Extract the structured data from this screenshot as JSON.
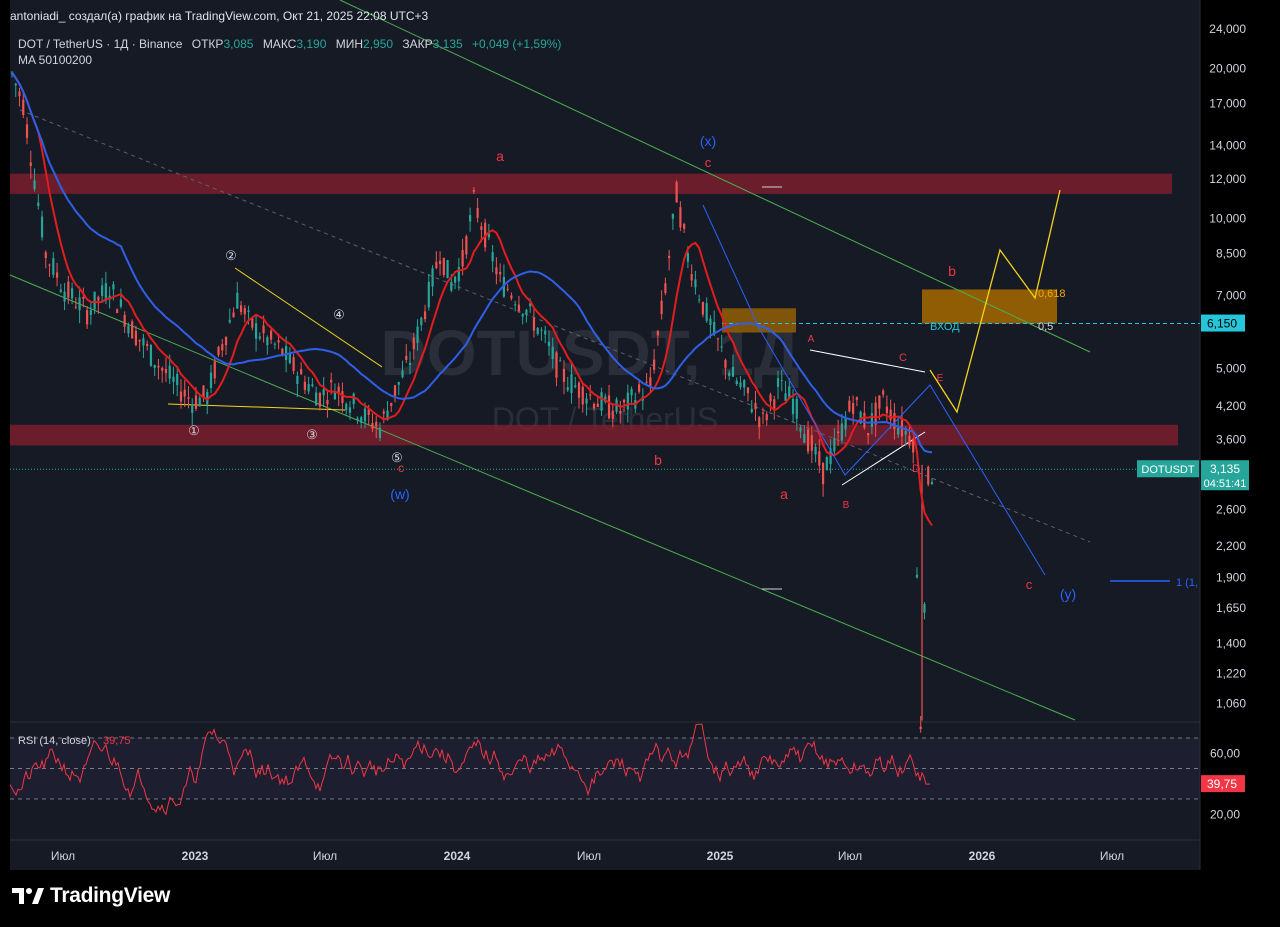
{
  "header": {
    "author_line": "antoniadi_ создал(а) график на TradingView.com, Окт 21, 2025 22:08 UTC+3",
    "symbol_line": "DOT / TetherUS · 1Д · Binance",
    "open_label": "ОТКР",
    "open": "3,085",
    "high_label": "МАКС",
    "high": "3,190",
    "low_label": "МИН",
    "low": "2,950",
    "close_label": "ЗАКР",
    "close": "3,135",
    "change": "+0,049 (+1,59%)",
    "ma_line": "MA 50100200"
  },
  "watermark": {
    "symbol": "DOTUSDT, 1Д",
    "name": "DOT / TetherUS"
  },
  "brand": {
    "name": "TradingView"
  },
  "colors": {
    "background": "#161a25",
    "up": "#26a69a",
    "down": "#ef5350",
    "ma_fast": "#e11d1d",
    "ma_slow": "#2f5fe8",
    "wave_labels": "#f23645",
    "wave_blue": "#2962ff",
    "zone_red": "#7a1e2e",
    "zone_orange": "#a66a00",
    "trend_green": "#4caf50",
    "projection_yellow": "#f5d31b",
    "rsi_line": "#f23645",
    "price_tag": "#26a69a"
  },
  "chart_data": {
    "type": "candlestick",
    "title": "DOT / TetherUS · 1Д · Binance",
    "scale": "log",
    "ylim": [
      0.95,
      25
    ],
    "price_axis_ticks": [
      "24,000",
      "20,000",
      "17,000",
      "14,000",
      "12,000",
      "10,000",
      "8,500",
      "7,000",
      "6,150",
      "5,000",
      "4,200",
      "3,600",
      "3,135",
      "2,600",
      "2,200",
      "1,900",
      "1,650",
      "1,400",
      "1,220",
      "1,060"
    ],
    "time_axis_ticks": [
      "Июл",
      "2023",
      "Июл",
      "2024",
      "Июл",
      "2025",
      "Июл",
      "2026",
      "Июл"
    ],
    "current_price": {
      "label": "DOTUSDT",
      "value": "3,135",
      "countdown": "04:51:41",
      "value_num": 3.135
    },
    "price_levels": [
      {
        "label": "6,150",
        "value": 6.15,
        "style": "dashed",
        "color": "#26c6da"
      },
      {
        "label": "1 (1,",
        "value": 1.87,
        "style": "solid",
        "color": "#2962ff"
      }
    ],
    "zones": [
      {
        "name": "resistance",
        "from": 11.2,
        "to": 12.3,
        "color": "#7a1e2e"
      },
      {
        "name": "support",
        "from": 3.5,
        "to": 3.85,
        "color": "#7a1e2e"
      },
      {
        "name": "entry",
        "from": 6.15,
        "to": 7.2,
        "color": "#a66a00",
        "label": "ВХОД"
      }
    ],
    "fib_labels": [
      "0,618",
      "0,5"
    ],
    "wave_annotations": [
      "①",
      "②",
      "③",
      "④",
      "⑤",
      "(w)",
      "(x)",
      "(y)",
      "a",
      "b",
      "c",
      "A",
      "B",
      "C",
      "D",
      "E"
    ],
    "price_path": [
      [
        0,
        19.5
      ],
      [
        3,
        17
      ],
      [
        6,
        12
      ],
      [
        9,
        8.5
      ],
      [
        14,
        7.2
      ],
      [
        20,
        6.5
      ],
      [
        26,
        7.3
      ],
      [
        32,
        6
      ],
      [
        38,
        5.2
      ],
      [
        44,
        4.6
      ],
      [
        48,
        4.3
      ],
      [
        52,
        4.4
      ],
      [
        56,
        5.6
      ],
      [
        60,
        6.9
      ],
      [
        63,
        6.2
      ],
      [
        67,
        5.8
      ],
      [
        72,
        5.4
      ],
      [
        77,
        4.8
      ],
      [
        82,
        4.4
      ],
      [
        86,
        4.6
      ],
      [
        90,
        4.3
      ],
      [
        94,
        4.0
      ],
      [
        98,
        3.8
      ],
      [
        102,
        4.5
      ],
      [
        106,
        5.2
      ],
      [
        110,
        6.6
      ],
      [
        114,
        8.6
      ],
      [
        117,
        7.4
      ],
      [
        120,
        8.2
      ],
      [
        123,
        10.8
      ],
      [
        126,
        9.3
      ],
      [
        130,
        7.5
      ],
      [
        134,
        7.0
      ],
      [
        138,
        6.4
      ],
      [
        142,
        5.7
      ],
      [
        146,
        4.9
      ],
      [
        150,
        4.6
      ],
      [
        154,
        4.4
      ],
      [
        158,
        4.2
      ],
      [
        162,
        4.1
      ],
      [
        166,
        4.4
      ],
      [
        170,
        4.6
      ],
      [
        174,
        7.3
      ],
      [
        177,
        11.2
      ],
      [
        180,
        8.4
      ],
      [
        184,
        6.7
      ],
      [
        188,
        5.6
      ],
      [
        192,
        4.8
      ],
      [
        196,
        4.4
      ],
      [
        200,
        3.9
      ],
      [
        204,
        4.6
      ],
      [
        208,
        4.3
      ],
      [
        212,
        3.6
      ],
      [
        216,
        3.1
      ],
      [
        220,
        3.6
      ],
      [
        224,
        4.3
      ],
      [
        228,
        3.8
      ],
      [
        232,
        4.3
      ],
      [
        236,
        3.85
      ],
      [
        240,
        3.6
      ],
      [
        242,
        0.98
      ],
      [
        244,
        3.0
      ],
      [
        246,
        3.135
      ]
    ],
    "price_path_units": "x in weeks since the first visible candle, y in USDT",
    "series": [
      {
        "name": "MA 50"
      },
      {
        "name": "MA 200"
      },
      {
        "name": "RSI (14, close)",
        "last": 39.75
      }
    ],
    "rsi": {
      "label": "RSI (14, close)",
      "value_label": "39,75",
      "value": 39.75,
      "axis_ticks": [
        "60,00",
        "20,00"
      ],
      "levels": [
        70,
        50,
        30
      ]
    }
  }
}
